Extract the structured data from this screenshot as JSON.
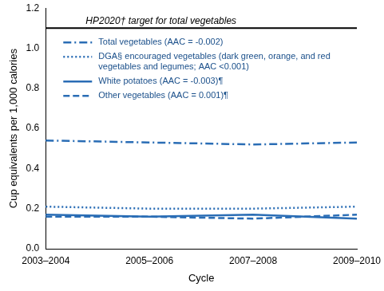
{
  "chart_data": {
    "type": "line",
    "x_label": "Cycle",
    "y_label": "Cup equivalents per 1,000 calories",
    "categories": [
      "2003–2004",
      "2005–2006",
      "2007–2008",
      "2009–2010"
    ],
    "series": [
      {
        "name": "Total vegetables (AAC = -0.002)",
        "color": "#2a6db5",
        "line_style": "dashdot",
        "values": [
          0.54,
          0.53,
          0.52,
          0.53
        ]
      },
      {
        "name": "DGA§ encouraged vegetables (dark green, orange, and red vegetables and legumes; AAC <0.001)",
        "color": "#2a6db5",
        "line_style": "dotted",
        "values": [
          0.21,
          0.2,
          0.2,
          0.21
        ]
      },
      {
        "name": "White potatoes (AAC = -0.003)¶",
        "color": "#2a6db5",
        "line_style": "solid",
        "values": [
          0.17,
          0.16,
          0.17,
          0.15
        ]
      },
      {
        "name": "Other vegetables (AAC = 0.001)¶",
        "color": "#2a6db5",
        "line_style": "dashed",
        "values": [
          0.16,
          0.16,
          0.15,
          0.17
        ]
      }
    ],
    "annotations": [
      {
        "y": 1.1,
        "text": "HP2020† target for total vegetables",
        "color": "#000000"
      }
    ],
    "ylim": [
      0,
      1.2
    ],
    "yticks": [
      {
        "value": 0,
        "label": "0.0"
      },
      0.2,
      0.4,
      0.6,
      0.8,
      {
        "value": 1,
        "label": "1.0"
      },
      1.2
    ],
    "grid": false,
    "legend": "top-left",
    "marker": "none"
  }
}
